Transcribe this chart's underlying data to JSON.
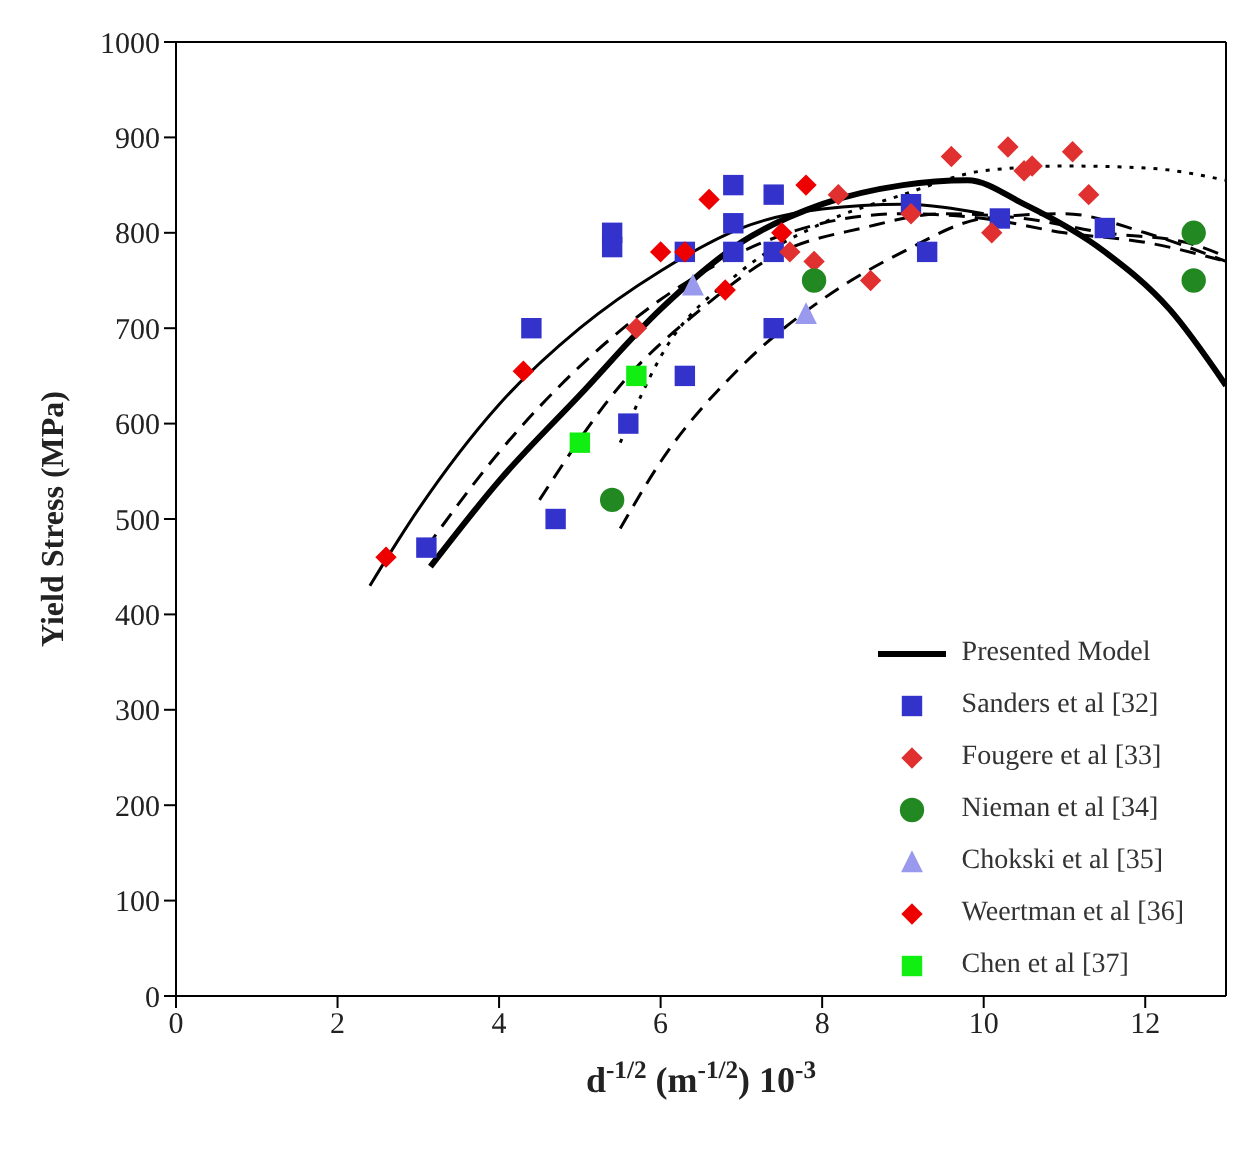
{
  "chart_data": {
    "type": "scatter",
    "xlabel": "d$^{-1/2}$ (m$^{-1/2}$) 10$^{-3}$",
    "ylabel": "Yield Stress (MPa)",
    "xlim": [
      0,
      13
    ],
    "xticks": [
      0,
      2,
      4,
      6,
      8,
      10,
      12
    ],
    "ylim": [
      0,
      1000
    ],
    "yticks": [
      0,
      100,
      200,
      300,
      400,
      500,
      600,
      700,
      800,
      900,
      1000
    ],
    "legend": "bottom right",
    "series": [
      {
        "name": "Presented Model",
        "type": "line",
        "color": "#000000",
        "line_style": "solid",
        "marker": "none",
        "x": [
          3.15,
          4,
          5,
          6,
          7,
          8,
          9,
          9.8,
          10.5,
          11.5,
          12.3,
          13
        ],
        "values": [
          450,
          540,
          630,
          720,
          790,
          830,
          850,
          855,
          830,
          780,
          720,
          640
        ]
      },
      {
        "type": "line",
        "color": "#000000",
        "line_style": "solid",
        "marker": "none",
        "x": [
          2.4,
          3,
          4,
          5,
          6,
          7,
          8,
          9,
          10
        ],
        "values": [
          430,
          510,
          620,
          700,
          760,
          805,
          825,
          830,
          820
        ]
      },
      {
        "type": "line",
        "color": "#000000",
        "line_style": "dashed",
        "marker": "none",
        "x": [
          3.1,
          4,
          5,
          6,
          7,
          8,
          9,
          10,
          11,
          12,
          13
        ],
        "values": [
          470,
          570,
          660,
          730,
          780,
          810,
          820,
          815,
          800,
          790,
          770
        ]
      },
      {
        "type": "line",
        "color": "#000000",
        "line_style": "dotted",
        "marker": "none",
        "x": [
          5.5,
          6,
          7,
          8,
          9,
          10,
          11,
          12,
          13
        ],
        "values": [
          580,
          670,
          760,
          810,
          840,
          865,
          870,
          868,
          855
        ]
      },
      {
        "type": "line",
        "color": "#000000",
        "line_style": "dashed",
        "marker": "none",
        "x": [
          4.5,
          5.5,
          6.5,
          7.5,
          8.5,
          9.5,
          10.5,
          11.5,
          12.5,
          13
        ],
        "values": [
          520,
          640,
          720,
          780,
          805,
          820,
          815,
          800,
          790,
          775
        ]
      },
      {
        "type": "line",
        "color": "#000000",
        "line_style": "dashed",
        "marker": "none",
        "x": [
          5.5,
          6,
          7,
          8,
          9,
          10,
          11,
          12,
          13
        ],
        "values": [
          490,
          560,
          660,
          730,
          780,
          815,
          820,
          800,
          770
        ]
      },
      {
        "name": "Sanders et al [32]",
        "color": "#3333cc",
        "marker": "square",
        "x": [
          3.1,
          4.4,
          4.7,
          5.4,
          5.4,
          5.6,
          6.3,
          6.3,
          6.9,
          6.9,
          6.9,
          7.4,
          7.4,
          7.4,
          9.1,
          9.3,
          10.2,
          11.5
        ],
        "values": [
          470,
          700,
          500,
          800,
          785,
          600,
          780,
          650,
          850,
          810,
          780,
          840,
          780,
          700,
          830,
          780,
          815,
          805
        ]
      },
      {
        "name": "Fougere et al [33]",
        "color": "#e03030",
        "marker": "diamond",
        "x": [
          5.7,
          7.6,
          7.9,
          8.2,
          8.6,
          9.1,
          9.6,
          10.1,
          10.3,
          10.5,
          10.6,
          11.1,
          11.3
        ],
        "values": [
          700,
          780,
          770,
          840,
          750,
          820,
          880,
          800,
          890,
          865,
          870,
          885,
          840
        ]
      },
      {
        "name": "Nieman et al [34]",
        "color": "#228822",
        "marker": "circle",
        "x": [
          5.4,
          7.9,
          12.6,
          12.6
        ],
        "values": [
          520,
          750,
          800,
          750
        ]
      },
      {
        "name": "Chokski et al [35]",
        "color": "#9999ee",
        "marker": "triangle",
        "x": [
          6.4,
          7.8
        ],
        "values": [
          745,
          715
        ]
      },
      {
        "name": "Weertman et al [36]",
        "color": "#ee0000",
        "marker": "diamond",
        "x": [
          2.6,
          4.3,
          6.0,
          6.3,
          6.6,
          6.8,
          7.5,
          7.8
        ],
        "values": [
          460,
          655,
          780,
          780,
          835,
          740,
          800,
          850
        ]
      },
      {
        "name": "Chen et al [37]",
        "color": "#11ee11",
        "marker": "square",
        "x": [
          5.0,
          5.7
        ],
        "values": [
          580,
          650
        ]
      }
    ]
  }
}
